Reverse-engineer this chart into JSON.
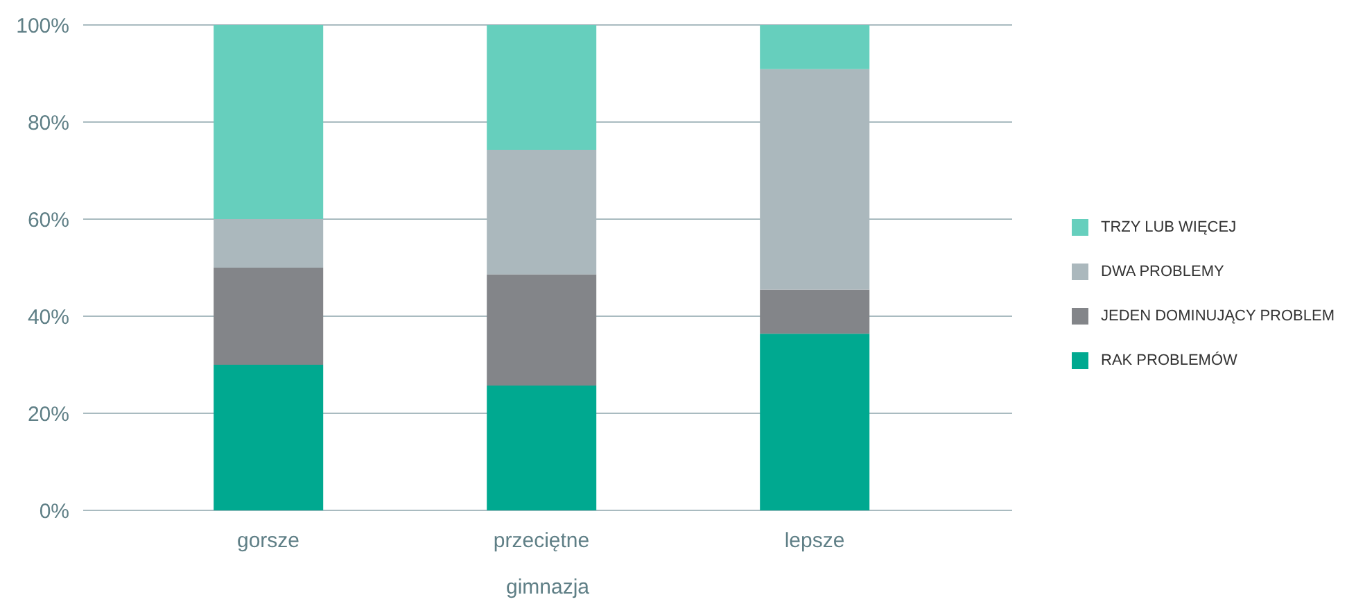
{
  "chart_data": {
    "type": "bar",
    "stacked": true,
    "xlabel": "gimnazja",
    "categories": [
      "gorsze",
      "przeciętne",
      "lepsze"
    ],
    "series": [
      {
        "name": "RAK PROBLEMÓW",
        "color": "#00a990",
        "values": [
          30,
          25.7,
          36.4
        ]
      },
      {
        "name": "JEDEN DOMINUJĄCY PROBLEM",
        "color": "#838589",
        "values": [
          20,
          22.9,
          9.1
        ]
      },
      {
        "name": "DWA PROBLEMY",
        "color": "#abb8bd",
        "values": [
          10,
          25.7,
          45.4
        ]
      },
      {
        "name": "TRZY LUB WIĘCEJ",
        "color": "#66cfbd",
        "values": [
          40,
          25.7,
          9.1
        ]
      }
    ],
    "ylim": [
      0,
      100
    ],
    "yticks": [
      {
        "value": 0,
        "label": "0%"
      },
      {
        "value": 20,
        "label": "20%"
      },
      {
        "value": 40,
        "label": "40%"
      },
      {
        "value": 60,
        "label": "60%"
      },
      {
        "value": 80,
        "label": "80%"
      },
      {
        "value": 100,
        "label": "100%"
      }
    ],
    "grid": "y",
    "legend": "right"
  }
}
